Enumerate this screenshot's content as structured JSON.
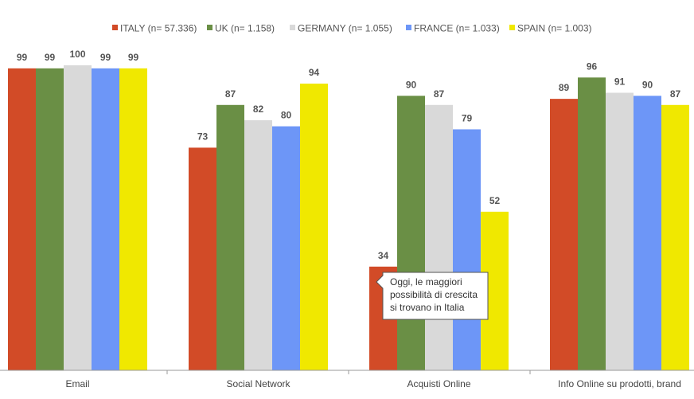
{
  "chart_data": {
    "type": "bar",
    "categories": [
      "Email",
      "Social Network",
      "Acquisti Online",
      "Info Online su prodotti, brand"
    ],
    "series": [
      {
        "name": "ITALY (n= 57.336)",
        "color": "#d24b27",
        "values": [
          99,
          73,
          34,
          89
        ]
      },
      {
        "name": "UK (n= 1.158)",
        "color": "#6a8f45",
        "values": [
          99,
          87,
          90,
          96
        ]
      },
      {
        "name": "GERMANY (n= 1.055)",
        "color": "#d9d9d9",
        "values": [
          100,
          82,
          87,
          91
        ]
      },
      {
        "name": "FRANCE (n= 1.033)",
        "color": "#6d96f7",
        "values": [
          99,
          80,
          79,
          90
        ]
      },
      {
        "name": "SPAIN (n= 1.003)",
        "color": "#f0e800",
        "values": [
          99,
          94,
          52,
          87
        ]
      }
    ],
    "ylim": [
      0,
      100
    ],
    "legend_position": "top",
    "grid": false,
    "annotation": {
      "lines": [
        "Oggi, le maggiori",
        "possibilità di crescita",
        "si trovano in Italia"
      ],
      "category": "Acquisti Online",
      "series": "ITALY (n= 57.336)"
    }
  }
}
